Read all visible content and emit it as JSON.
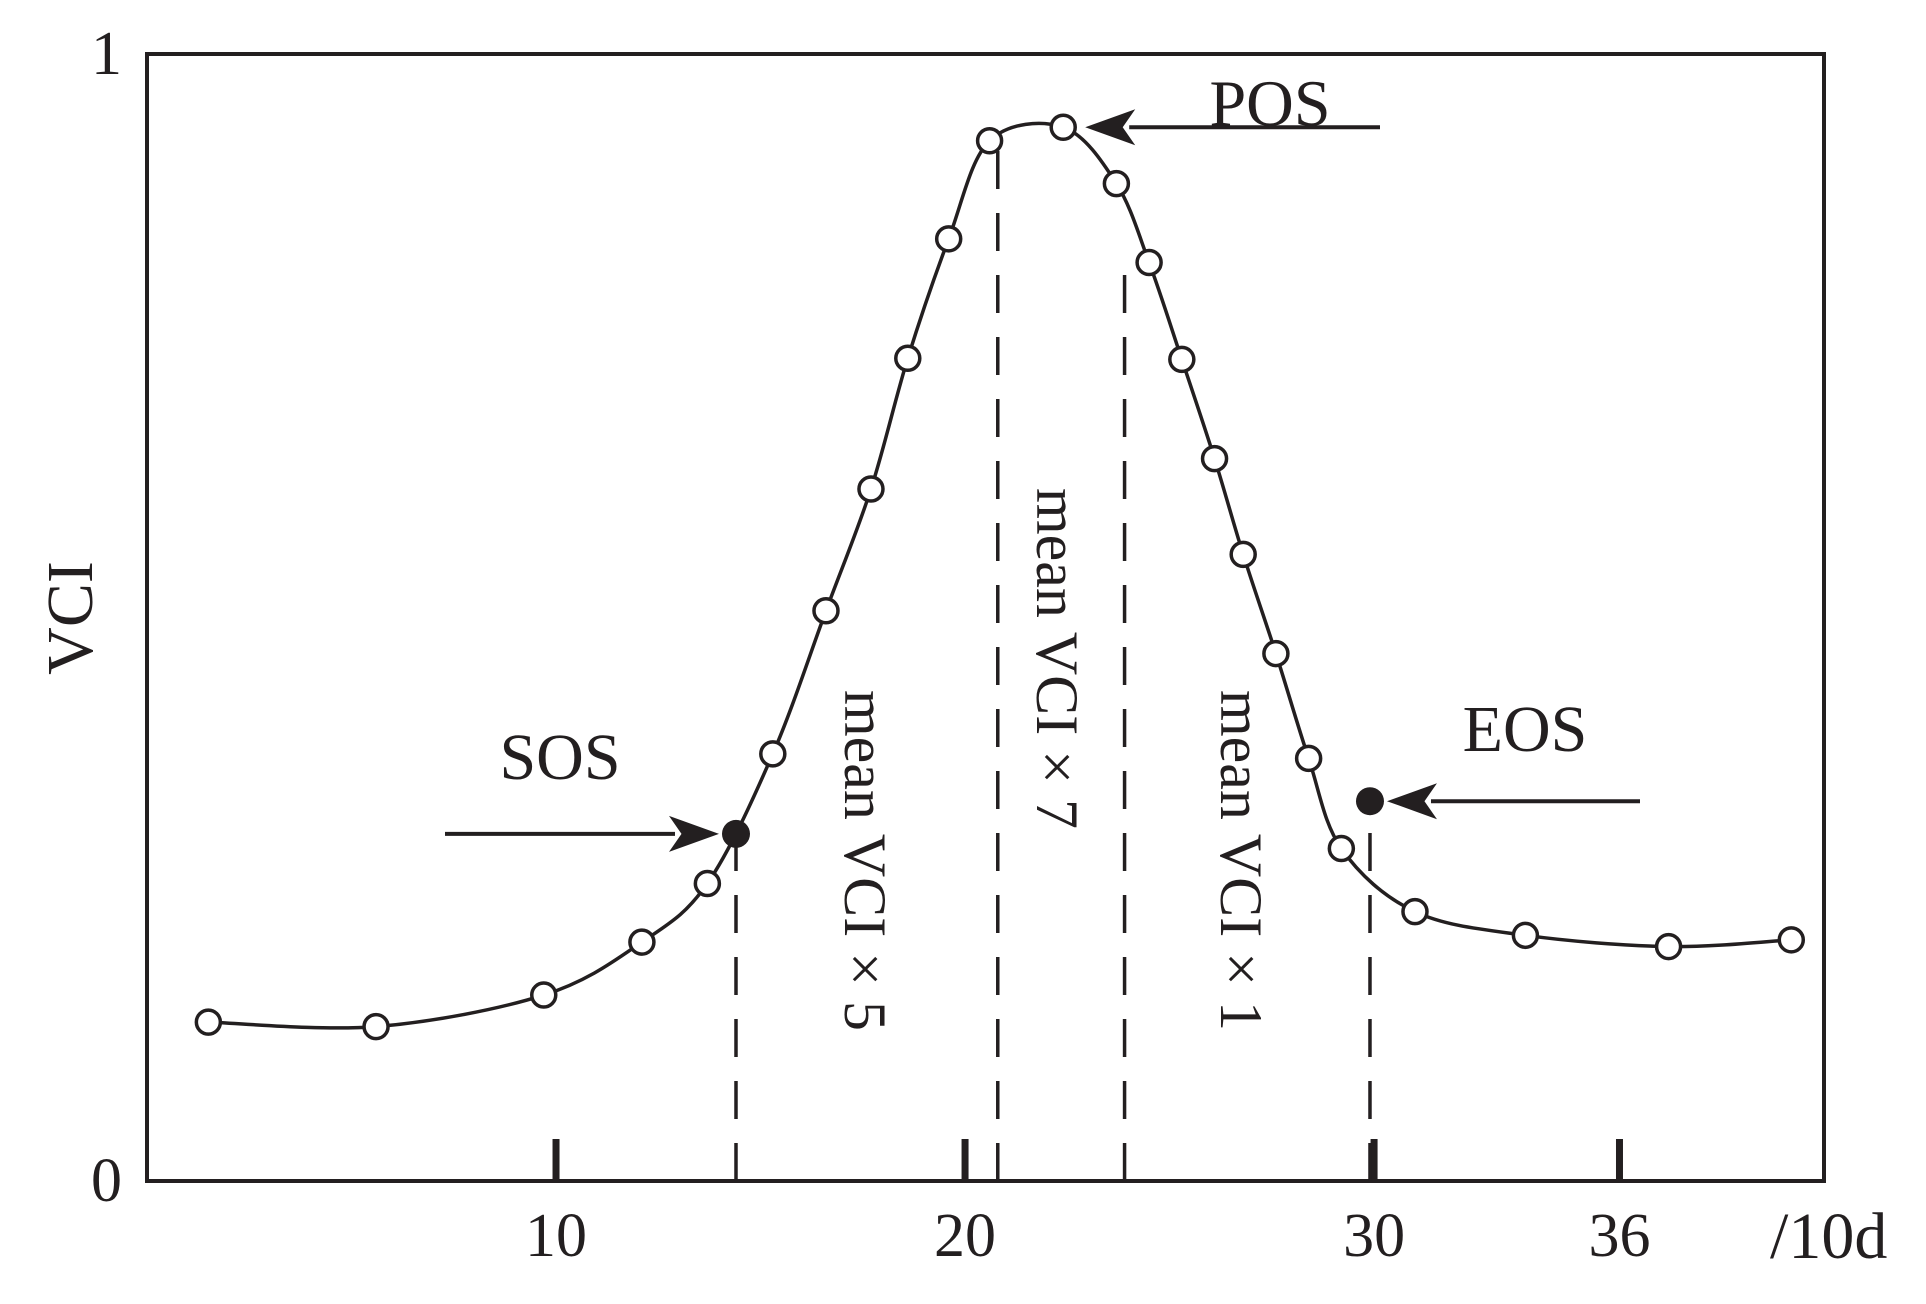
{
  "chart_data": {
    "type": "line",
    "title": "",
    "xlabel": "/10d",
    "ylabel": "VCI",
    "xlim": [
      0,
      41
    ],
    "ylim": [
      0,
      1
    ],
    "x_ticks": [
      10,
      20,
      30,
      36
    ],
    "y_ticks": [
      0,
      1
    ],
    "grid": false,
    "legend": "none",
    "line_color": "#231f20",
    "series": [
      {
        "markers": "open-circle",
        "x": [
          1.5,
          5.6,
          9.7,
          12.1,
          13.7,
          15.3,
          16.6,
          17.7,
          18.6,
          19.6,
          20.6,
          22.4,
          23.7,
          24.5,
          25.3,
          26.1,
          26.8,
          27.6,
          28.4,
          29.2,
          31.0,
          33.7,
          37.2,
          40.2
        ],
        "y": [
          0.141,
          0.137,
          0.165,
          0.212,
          0.264,
          0.379,
          0.506,
          0.614,
          0.73,
          0.836,
          0.923,
          0.935,
          0.885,
          0.815,
          0.729,
          0.641,
          0.556,
          0.468,
          0.375,
          0.295,
          0.239,
          0.218,
          0.208,
          0.214
        ]
      }
    ],
    "markers": [
      {
        "label": "SOS",
        "x": 14.4,
        "y": 0.308,
        "style": "filled-circle"
      },
      {
        "label": "EOS",
        "x": 29.9,
        "y": 0.337,
        "style": "filled-circle"
      },
      {
        "label": "POS",
        "x": 22.4,
        "y": 0.935,
        "style": "open-circle"
      }
    ],
    "reference_lines": [
      {
        "x": 14.4,
        "y_top": 0.308
      },
      {
        "x": 20.8,
        "y_top": 0.92
      },
      {
        "x": 23.9,
        "y_top": 0.82
      },
      {
        "x": 29.9,
        "y_top": 0.337
      }
    ],
    "annotations": [
      {
        "text": "mean VCI × 5",
        "x_center": 17.6
      },
      {
        "text": "mean VCI × 7",
        "x_center": 22.3
      },
      {
        "text": "mean VCI × 1",
        "x_center": 26.8
      }
    ]
  }
}
